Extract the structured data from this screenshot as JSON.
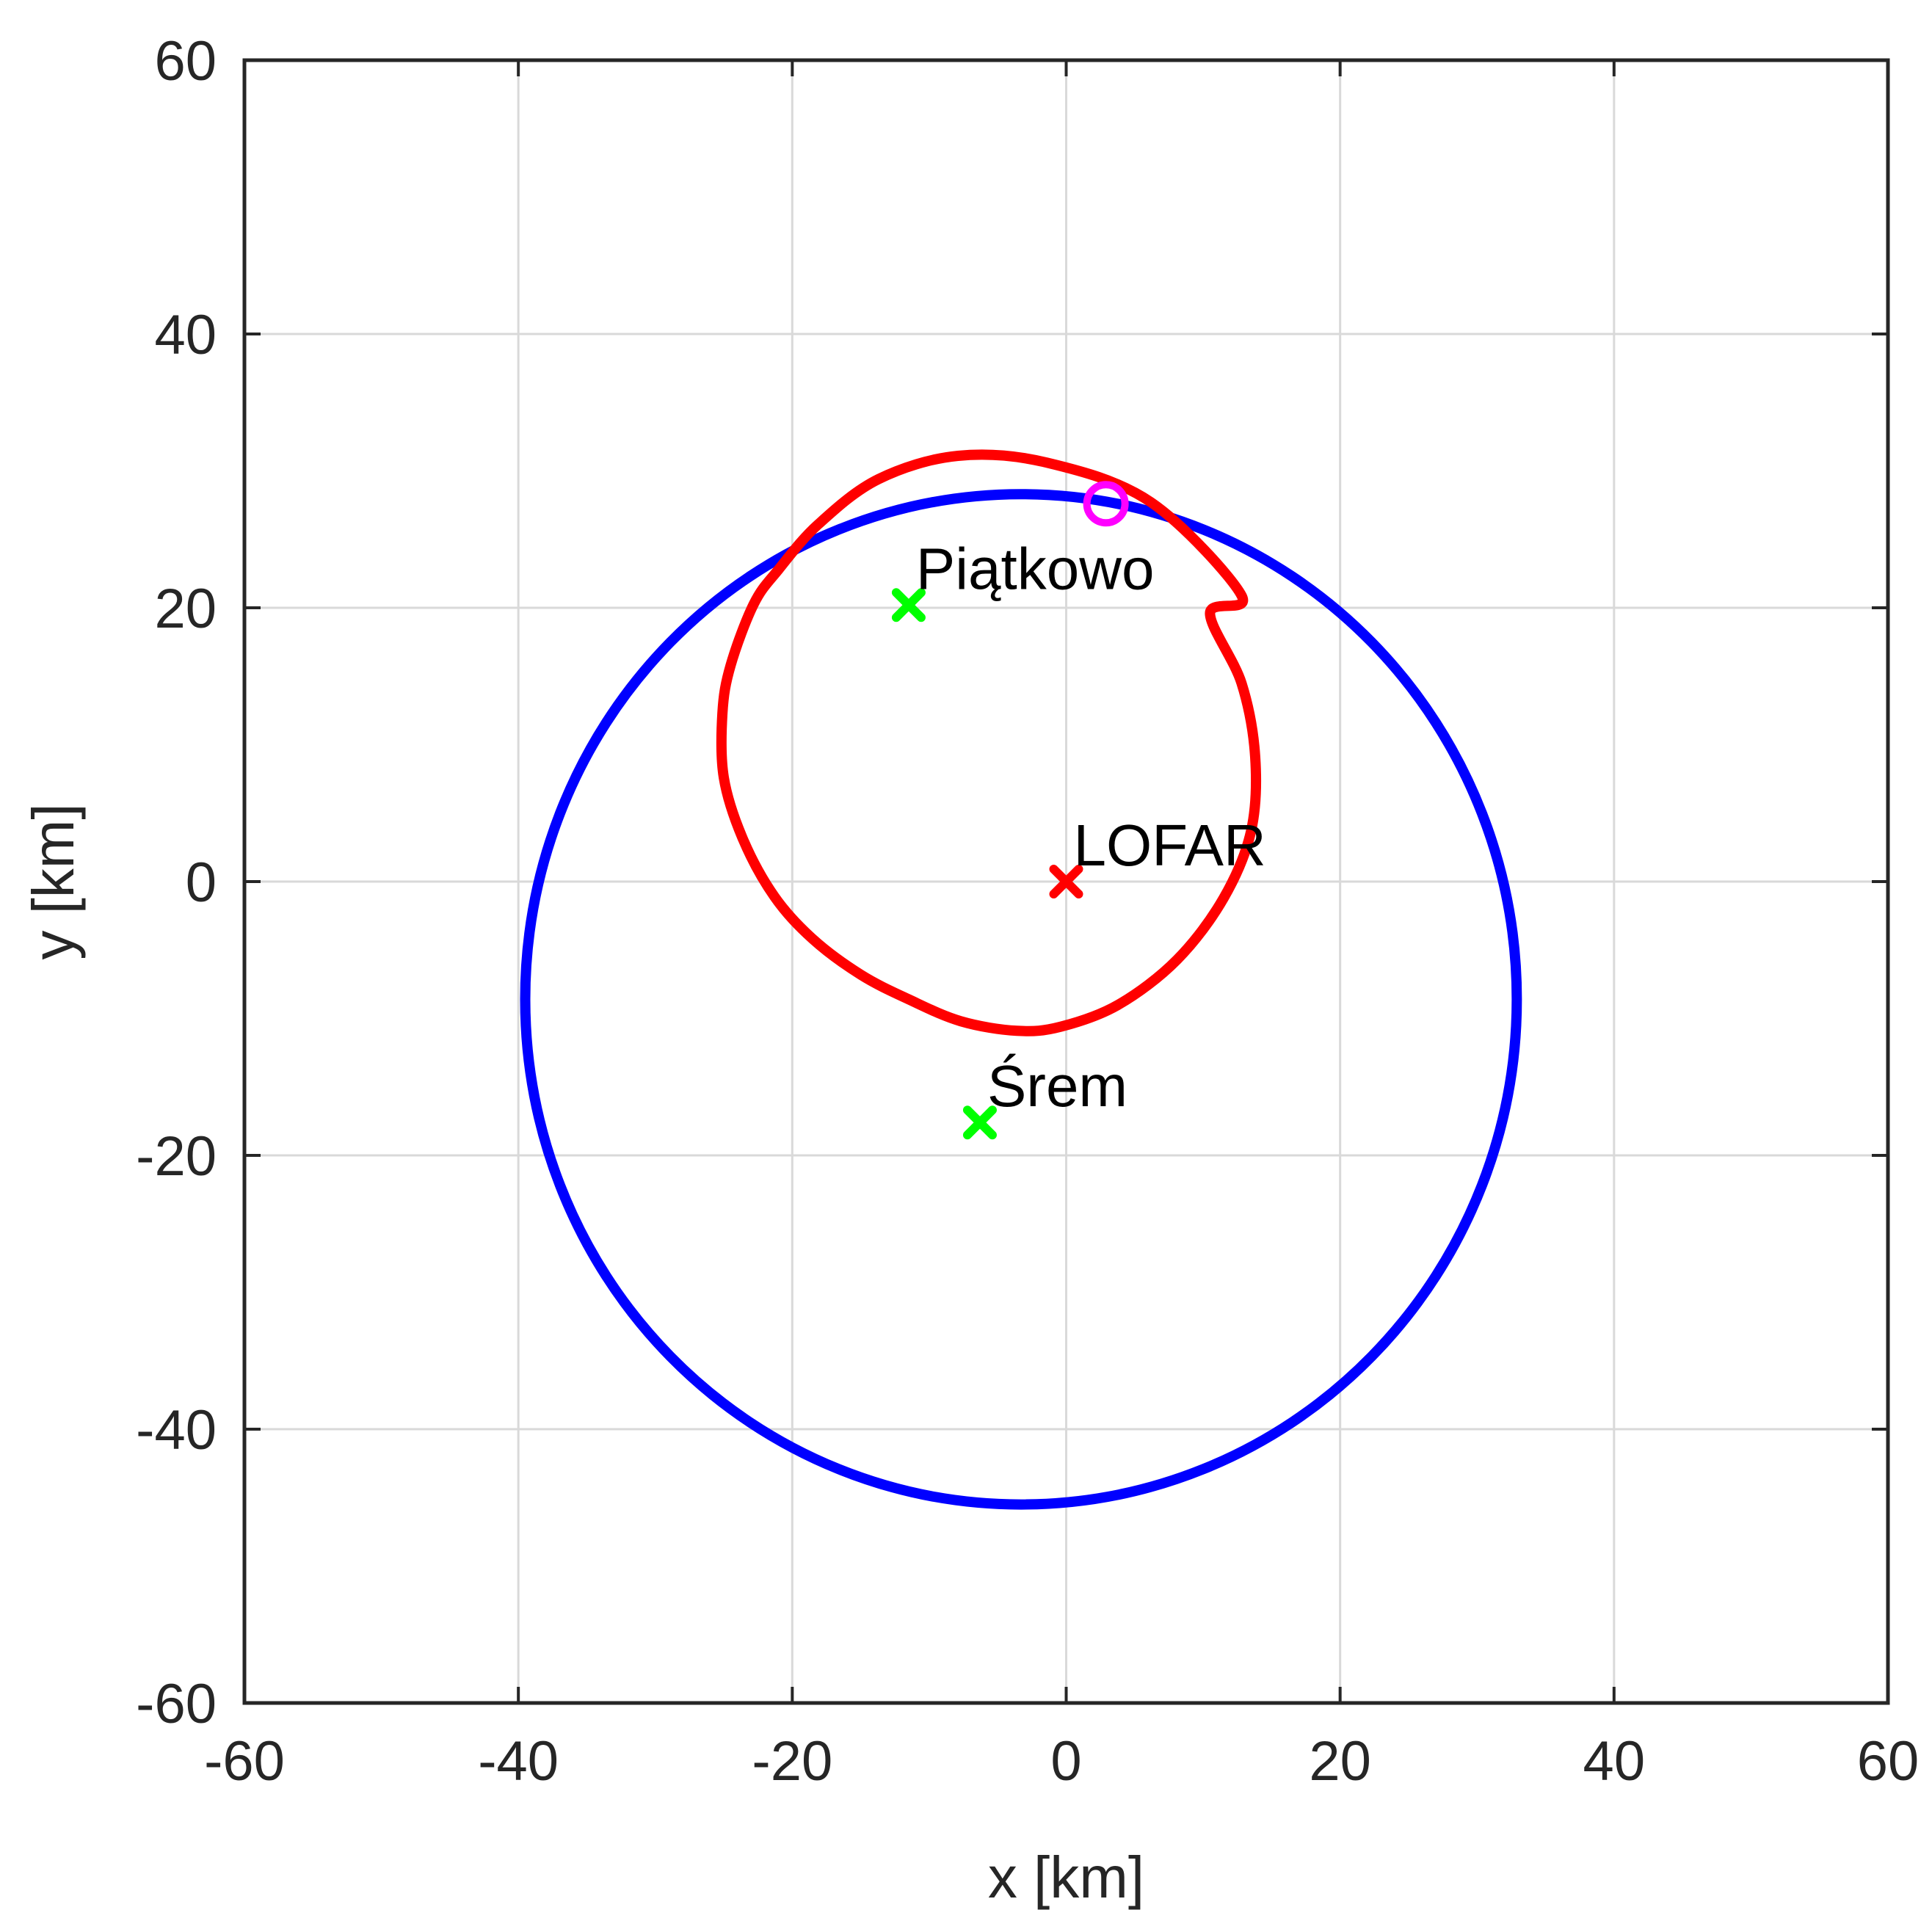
{
  "chart_data": {
    "type": "scatter",
    "xlabel": "x [km]",
    "ylabel": "y [km]",
    "xlim": [
      -60,
      60
    ],
    "ylim": [
      -60,
      60
    ],
    "xticks": [
      -60,
      -40,
      -20,
      0,
      20,
      40,
      60
    ],
    "yticks": [
      -60,
      -40,
      -20,
      0,
      20,
      40,
      60
    ],
    "xtick_labels": [
      "-60",
      "-40",
      "-20",
      "0",
      "20",
      "40",
      "60"
    ],
    "ytick_labels": [
      "-60",
      "-40",
      "-20",
      "0",
      "20",
      "40",
      "60"
    ],
    "grid": true,
    "curves": [
      {
        "color": "#0000ff",
        "shape": "ellipse",
        "center": [
          -3.3,
          -8.6
        ],
        "rx": 36.2,
        "ry": 36.9
      },
      {
        "color": "#ff0000",
        "shape": "closed-curve",
        "points": [
          [
            12.8,
            20.9
          ],
          [
            6.2,
            27.7
          ],
          [
            -1.4,
            30.6
          ],
          [
            -7.9,
            31.1
          ],
          [
            -13.7,
            29.4
          ],
          [
            -18.1,
            26.1
          ],
          [
            -21.0,
            22.8
          ],
          [
            -22.8,
            20.3
          ],
          [
            -24.5,
            15.8
          ],
          [
            -25.1,
            12.3
          ],
          [
            -25.0,
            7.6
          ],
          [
            -23.6,
            3.1
          ],
          [
            -21.3,
            -1.1
          ],
          [
            -18.5,
            -4.2
          ],
          [
            -15.0,
            -6.8
          ],
          [
            -11.5,
            -8.6
          ],
          [
            -7.7,
            -10.2
          ],
          [
            -3.6,
            -10.9
          ],
          [
            -0.4,
            -10.6
          ],
          [
            3.8,
            -9.0
          ],
          [
            8.1,
            -5.7
          ],
          [
            11.5,
            -1.2
          ],
          [
            13.5,
            3.7
          ],
          [
            13.8,
            9.1
          ],
          [
            12.8,
            14.5
          ],
          [
            10.5,
            19.6
          ]
        ]
      }
    ],
    "markers": [
      {
        "label": "Piątkowo",
        "x": -11.5,
        "y": 20.2,
        "symbol": "x",
        "color": "#00ff00"
      },
      {
        "label": "LOFAR",
        "x": 0.0,
        "y": 0.0,
        "symbol": "x",
        "color": "#ff0000"
      },
      {
        "label": "Śrem",
        "x": -6.3,
        "y": -17.6,
        "symbol": "x",
        "color": "#00ff00"
      },
      {
        "label": "",
        "x": 2.9,
        "y": 27.6,
        "symbol": "o",
        "color": "#ff00ff"
      }
    ]
  }
}
